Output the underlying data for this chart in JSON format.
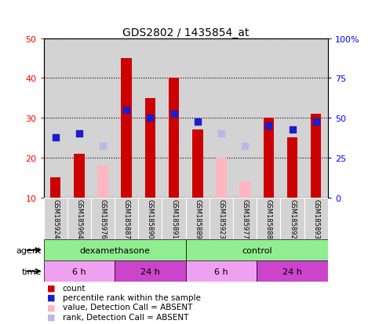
{
  "title": "GDS2802 / 1435854_at",
  "samples": [
    "GSM185924",
    "GSM185964",
    "GSM185976",
    "GSM185887",
    "GSM185890",
    "GSM185891",
    "GSM185889",
    "GSM185923",
    "GSM185977",
    "GSM185888",
    "GSM185892",
    "GSM185893"
  ],
  "red_bars": [
    15,
    21,
    null,
    45,
    35,
    40,
    27,
    null,
    null,
    30,
    25,
    31
  ],
  "pink_bars": [
    null,
    null,
    18,
    null,
    null,
    null,
    null,
    20,
    14,
    null,
    null,
    null
  ],
  "blue_squares": [
    25,
    26,
    null,
    32,
    30,
    31,
    29,
    null,
    null,
    28,
    27,
    29
  ],
  "lavender_squares": [
    null,
    null,
    23,
    null,
    null,
    null,
    null,
    26,
    23,
    null,
    null,
    null
  ],
  "ylim": [
    10,
    50
  ],
  "y_ticks_left": [
    10,
    20,
    30,
    40,
    50
  ],
  "agent_groups": [
    {
      "label": "dexamethasone",
      "start": 0,
      "end": 6,
      "color": "#90ee90"
    },
    {
      "label": "control",
      "start": 6,
      "end": 12,
      "color": "#90ee90"
    }
  ],
  "time_groups": [
    {
      "label": "6 h",
      "start": 0,
      "end": 3,
      "color": "#f0a0f0"
    },
    {
      "label": "24 h",
      "start": 3,
      "end": 6,
      "color": "#cc44cc"
    },
    {
      "label": "6 h",
      "start": 6,
      "end": 9,
      "color": "#f0a0f0"
    },
    {
      "label": "24 h",
      "start": 9,
      "end": 12,
      "color": "#cc44cc"
    }
  ],
  "red_color": "#cc0000",
  "pink_color": "#ffb6c1",
  "blue_color": "#1c1ccc",
  "lavender_color": "#b8b8e8",
  "bar_width": 0.45,
  "square_size": 30,
  "sample_bg_color": "#d3d3d3",
  "right_y_labels": [
    "0",
    "25",
    "50",
    "75",
    "100%"
  ],
  "right_y_vals": [
    10,
    20,
    30,
    40,
    50
  ],
  "legend_colors": [
    "#cc0000",
    "#1c1ccc",
    "#ffb6c1",
    "#b8b8e8"
  ],
  "legend_labels": [
    "count",
    "percentile rank within the sample",
    "value, Detection Call = ABSENT",
    "rank, Detection Call = ABSENT"
  ]
}
